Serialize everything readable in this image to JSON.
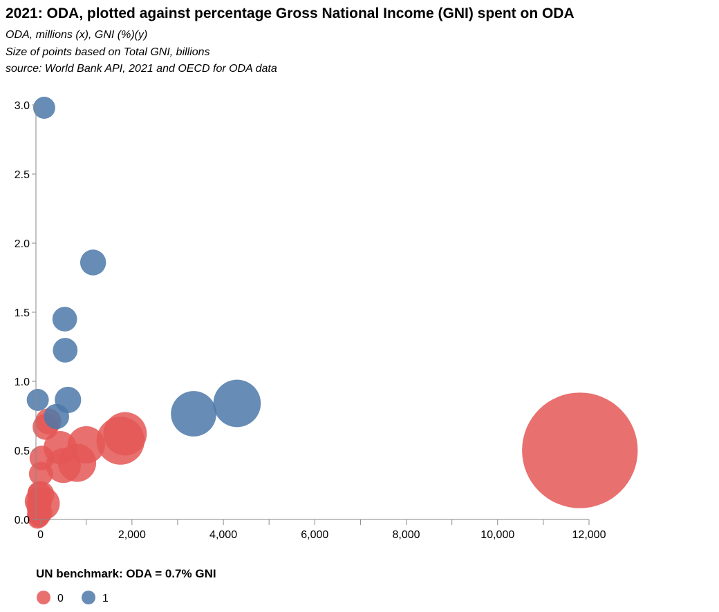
{
  "title": "2021: ODA, plotted against percentage Gross National Income (GNI) spent on ODA",
  "subtitles": [
    "ODA, millions (x), GNI (%)(y)",
    "Size of points based on Total GNI, billions",
    "source: World Bank API, 2021 and OECD for ODA data"
  ],
  "legend": {
    "title": "UN benchmark: ODA = 0.7% GNI",
    "items": [
      {
        "label": "0",
        "color": "#e45756"
      },
      {
        "label": "1",
        "color": "#4c78a8"
      }
    ]
  },
  "chart_data": {
    "type": "scatter",
    "xlabel": "",
    "ylabel": "",
    "xlim": [
      -100,
      12000
    ],
    "ylim": [
      0,
      3.0
    ],
    "x_ticks": [
      0,
      2000,
      4000,
      6000,
      8000,
      10000,
      12000
    ],
    "x_tick_labels": [
      "0",
      "2,000",
      "4,000",
      "6,000",
      "8,000",
      "10,000",
      "12,000"
    ],
    "y_ticks": [
      0,
      0.5,
      1.0,
      1.5,
      2.0,
      2.5,
      3.0
    ],
    "y_tick_labels": [
      "0.0",
      "0.5",
      "1.0",
      "1.5",
      "2.0",
      "2.5",
      "3.0"
    ],
    "grid": false,
    "legend_position": "bottom-left",
    "series": [
      {
        "name": "0",
        "color": "#e45756",
        "points": [
          {
            "x": 11800,
            "y": 0.5,
            "size": 22000
          },
          {
            "x": 1850,
            "y": 0.62,
            "size": 3100
          },
          {
            "x": 1750,
            "y": 0.57,
            "size": 3800
          },
          {
            "x": 1000,
            "y": 0.54,
            "size": 2300
          },
          {
            "x": 800,
            "y": 0.41,
            "size": 2400
          },
          {
            "x": 500,
            "y": 0.39,
            "size": 2000
          },
          {
            "x": 430,
            "y": 0.52,
            "size": 1800
          },
          {
            "x": 170,
            "y": 0.71,
            "size": 1100
          },
          {
            "x": 110,
            "y": 0.67,
            "size": 1100
          },
          {
            "x": 30,
            "y": 0.445,
            "size": 1000
          },
          {
            "x": 10,
            "y": 0.33,
            "size": 950
          },
          {
            "x": 60,
            "y": 0.115,
            "size": 1800
          },
          {
            "x": 5,
            "y": 0.18,
            "size": 1200
          },
          {
            "x": -30,
            "y": 0.19,
            "size": 900
          },
          {
            "x": -50,
            "y": 0.13,
            "size": 1200
          },
          {
            "x": -25,
            "y": 0.11,
            "size": 900
          },
          {
            "x": -40,
            "y": 0.075,
            "size": 900
          },
          {
            "x": -10,
            "y": 0.05,
            "size": 1000
          },
          {
            "x": -55,
            "y": 0.035,
            "size": 800
          },
          {
            "x": -30,
            "y": 0.015,
            "size": 700
          },
          {
            "x": -65,
            "y": 0.005,
            "size": 650
          }
        ]
      },
      {
        "name": "1",
        "color": "#4c78a8",
        "points": [
          {
            "x": 4300,
            "y": 0.84,
            "size": 3700
          },
          {
            "x": 3350,
            "y": 0.765,
            "size": 3400
          },
          {
            "x": 1150,
            "y": 1.86,
            "size": 1100
          },
          {
            "x": 600,
            "y": 0.865,
            "size": 1150
          },
          {
            "x": 350,
            "y": 0.745,
            "size": 1050
          },
          {
            "x": 530,
            "y": 1.45,
            "size": 1000
          },
          {
            "x": 540,
            "y": 1.225,
            "size": 1000
          },
          {
            "x": 80,
            "y": 2.98,
            "size": 800
          },
          {
            "x": -60,
            "y": 0.865,
            "size": 800
          }
        ]
      }
    ]
  }
}
